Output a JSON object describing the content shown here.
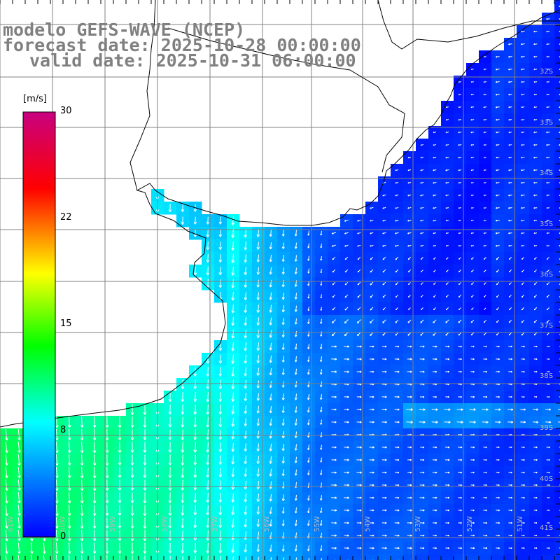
{
  "title": {
    "line1": "modelo GEFS-WAVE (NCEP)",
    "line2": "forecast date: 2025-10-28 00:00:00",
    "line3": "valid date: 2025-10-31 06:00:00"
  },
  "colorbar": {
    "unit": "[m/s]",
    "ticks": [
      "30",
      "22",
      "15",
      "8",
      "0"
    ],
    "tick_values": [
      30,
      22,
      15,
      8,
      0
    ],
    "min": 0,
    "max": 30,
    "colors": [
      "#0000ff",
      "#00ffff",
      "#00ff00",
      "#ffff00",
      "#ff0000",
      "#c80080"
    ]
  },
  "lat_labels": [
    "32S",
    "33S",
    "34S",
    "35S",
    "36S",
    "37S",
    "38S",
    "39S",
    "40S",
    "41S"
  ],
  "lon_labels": [
    "61W",
    "60W",
    "59W",
    "58W",
    "57W",
    "56W",
    "55W",
    "54W",
    "53W",
    "52W",
    "51W"
  ],
  "colors": {
    "land": "#ffffff",
    "grid": "#808080",
    "coast": "#000000",
    "arrows": "#ffffff",
    "title": "#808080"
  }
}
